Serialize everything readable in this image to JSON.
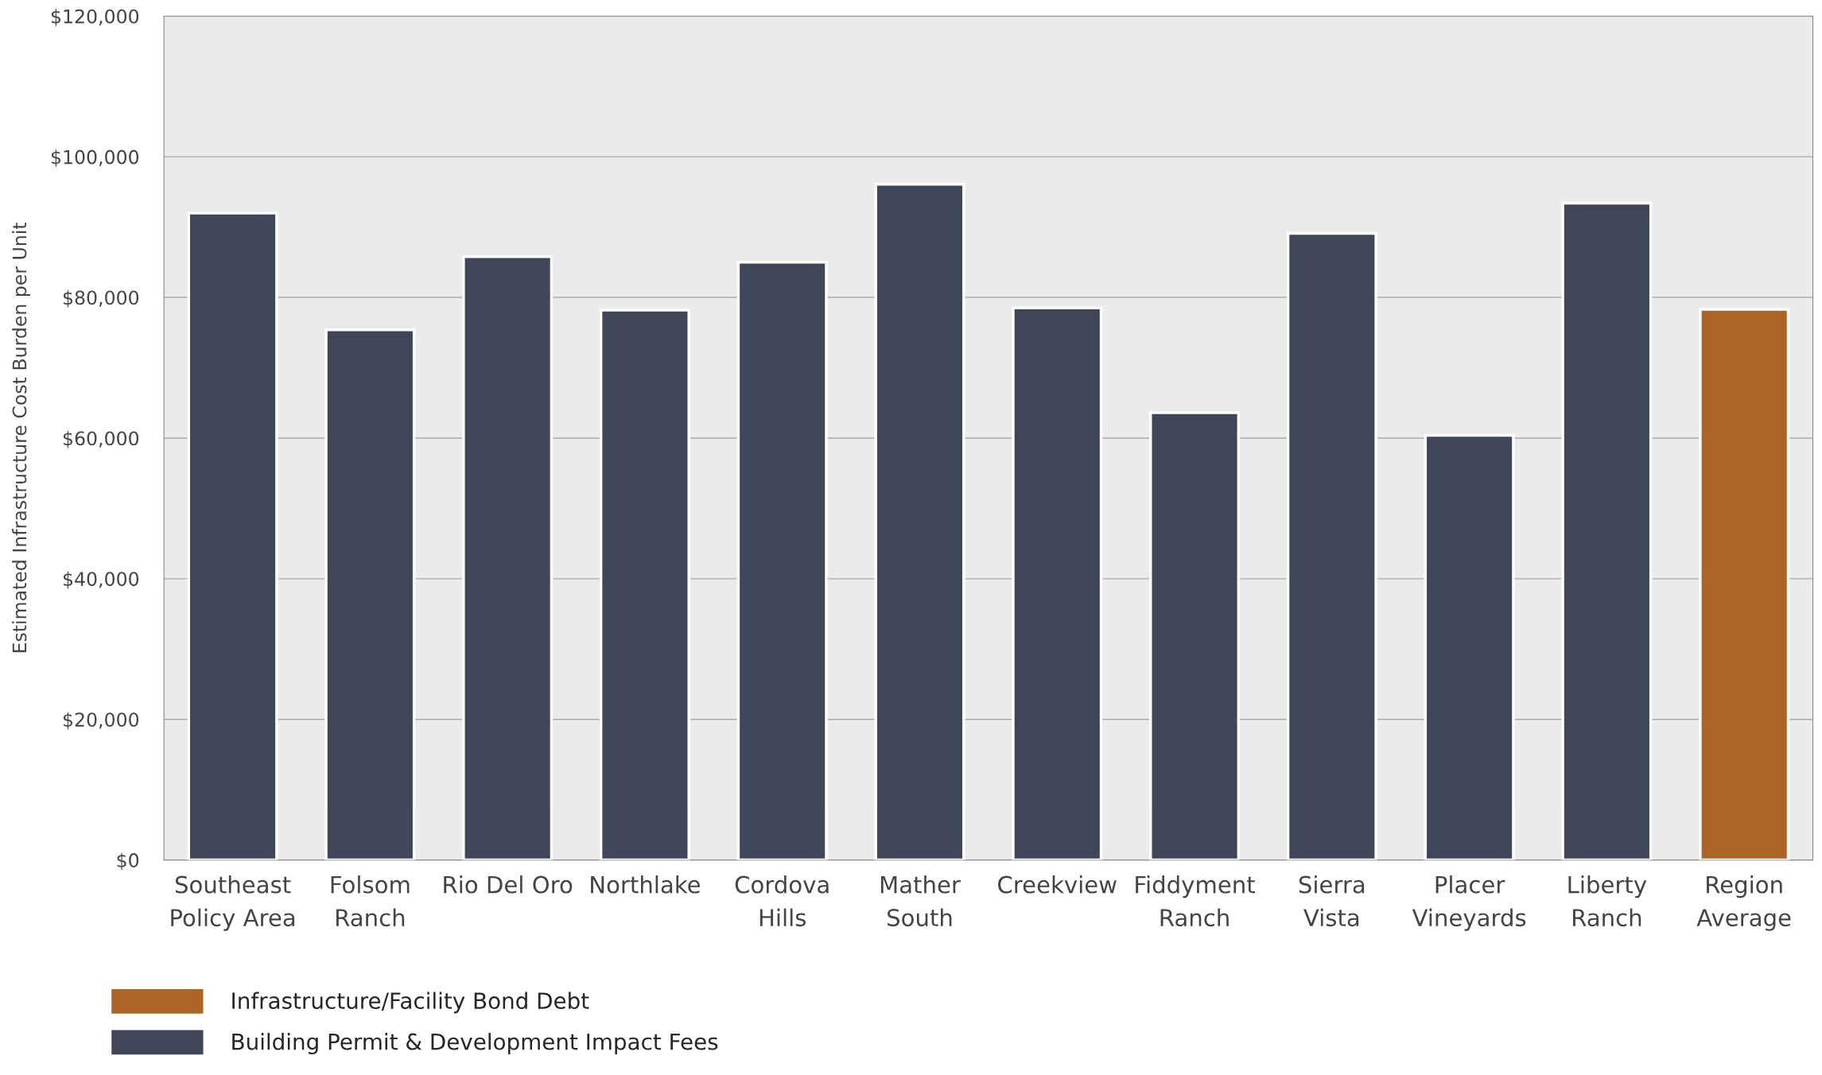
{
  "chart_data": {
    "type": "bar",
    "ylabel": "Estimated Infrastructure Cost Burden per Unit",
    "categories": [
      "Southeast\nPolicy Area",
      "Folsom\nRanch",
      "Rio Del Oro",
      "Northlake",
      "Cordova\nHills",
      "Mather\nSouth",
      "Creekview",
      "Fiddyment\nRanch",
      "Sierra\nVista",
      "Placer\nVineyards",
      "Liberty\nRanch",
      "Region\nAverage"
    ],
    "stacked": true,
    "series": [
      {
        "name": "Building Permit & Development Impact Fees",
        "color": "#40465a",
        "values": [
          92000,
          75400,
          85800,
          78200,
          85000,
          96100,
          78500,
          63600,
          89100,
          60400,
          93400,
          null
        ]
      },
      {
        "name": "Infrastructure/Facility Bond Debt",
        "color": "#ad6428",
        "values": [
          null,
          null,
          null,
          null,
          null,
          null,
          null,
          null,
          null,
          null,
          null,
          78300
        ]
      }
    ],
    "ylim": [
      0,
      120000
    ],
    "yticks": [
      {
        "value": 0,
        "label": "$0"
      },
      {
        "value": 20000,
        "label": "$20,000"
      },
      {
        "value": 40000,
        "label": "$40,000"
      },
      {
        "value": 60000,
        "label": "$60,000"
      },
      {
        "value": 80000,
        "label": "$80,000"
      },
      {
        "value": 100000,
        "label": "$100,000"
      },
      {
        "value": 120000,
        "label": "$120,000"
      }
    ],
    "grid": "y",
    "legend": "bottom"
  }
}
